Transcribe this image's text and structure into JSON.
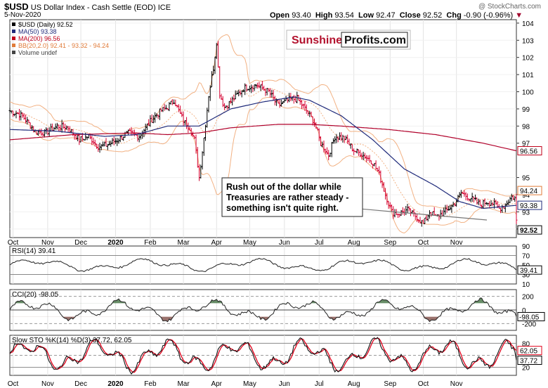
{
  "header": {
    "symbol": "$USD",
    "name": "US Dollar Index - Cash Settle (EOD)",
    "exchange": "ICE",
    "date": "5-Nov-2020",
    "open_label": "Open",
    "open": "93.40",
    "high_label": "High",
    "high": "93.54",
    "low_label": "Low",
    "low": "92.47",
    "close_label": "Close",
    "close": "92.52",
    "chg_label": "Chg",
    "chg": "-0.90 (-0.96%)",
    "watermark": "@ StockCharts.com"
  },
  "legend": [
    {
      "text": "$USD (Daily) 92.52",
      "color": "#000000"
    },
    {
      "text": "MA(50) 93.38",
      "color": "#1f2a7a"
    },
    {
      "text": "MA(200) 96.56",
      "color": "#c0001a"
    },
    {
      "text": "BB(20,2.0) 92.41 - 93.32 - 94.24",
      "color": "#e07b39"
    },
    {
      "text": "Volume undef",
      "color": "#444444"
    }
  ],
  "logo": {
    "part1": "Sunshine",
    "part2": "Profits.com"
  },
  "annotation": {
    "lines": [
      "Rush out of the dollar while",
      "Treasuries are rather steady -",
      "something isn't quite right."
    ]
  },
  "x_labels": [
    "Oct",
    "Nov",
    "Dec",
    "2020",
    "Feb",
    "Mar",
    "Apr",
    "May",
    "Jun",
    "Jul",
    "Aug",
    "Sep",
    "Oct",
    "Nov"
  ],
  "price_badges": [
    {
      "value": "96.56",
      "color": "#c0001a"
    },
    {
      "value": "94.24",
      "color": "#e07b39"
    },
    {
      "value": "93.38",
      "color": "#1f2a7a"
    },
    {
      "value": "92.52",
      "color": "#000000"
    }
  ],
  "chart_data": [
    {
      "type": "line",
      "title": "$USD (Daily) 92.52",
      "ylim": [
        91.5,
        104.2
      ],
      "y_ticks": [
        "104",
        "103",
        "102",
        "101",
        "100",
        "99",
        "98",
        "97",
        "95",
        "94",
        "93",
        "92"
      ],
      "series": [
        {
          "name": "$USD (Daily) 92.52",
          "kind": "ohlc",
          "anchors": [
            [
              0,
              98.9
            ],
            [
              8,
              98.6
            ],
            [
              16,
              97.7
            ],
            [
              22,
              97.6
            ],
            [
              30,
              98.0
            ],
            [
              37,
              97.9
            ],
            [
              44,
              97.2
            ],
            [
              50,
              97.4
            ],
            [
              56,
              96.8
            ],
            [
              62,
              96.9
            ],
            [
              68,
              97.2
            ],
            [
              75,
              97.6
            ],
            [
              82,
              97.4
            ],
            [
              90,
              98.4
            ],
            [
              96,
              98.9
            ],
            [
              100,
              99.1
            ],
            [
              104,
              99.5
            ],
            [
              110,
              98.3
            ],
            [
              114,
              97.9
            ],
            [
              117,
              97.2
            ],
            [
              120,
              95.0
            ],
            [
              123,
              97.3
            ],
            [
              126,
              99.8
            ],
            [
              129,
              101.4
            ],
            [
              131,
              102.9
            ],
            [
              133,
              99.9
            ],
            [
              136,
              99.1
            ],
            [
              142,
              99.6
            ],
            [
              148,
              100.2
            ],
            [
              156,
              100.4
            ],
            [
              164,
              100.0
            ],
            [
              170,
              99.2
            ],
            [
              176,
              99.5
            ],
            [
              182,
              99.6
            ],
            [
              188,
              98.9
            ],
            [
              193,
              98.2
            ],
            [
              197,
              97.0
            ],
            [
              202,
              96.3
            ],
            [
              206,
              97.4
            ],
            [
              212,
              97.3
            ],
            [
              218,
              96.6
            ],
            [
              224,
              96.3
            ],
            [
              230,
              95.9
            ],
            [
              234,
              95.2
            ],
            [
              238,
              94.0
            ],
            [
              242,
              93.0
            ],
            [
              246,
              92.9
            ],
            [
              252,
              93.1
            ],
            [
              258,
              92.7
            ],
            [
              262,
              92.3
            ],
            [
              266,
              93.0
            ],
            [
              270,
              92.7
            ],
            [
              274,
              92.9
            ],
            [
              278,
              93.2
            ],
            [
              282,
              93.5
            ],
            [
              286,
              94.1
            ],
            [
              290,
              93.9
            ],
            [
              294,
              93.7
            ],
            [
              298,
              93.4
            ],
            [
              302,
              93.6
            ],
            [
              306,
              93.5
            ],
            [
              310,
              93.2
            ],
            [
              314,
              93.4
            ],
            [
              318,
              93.9
            ],
            [
              320,
              93.8
            ],
            [
              321,
              92.5
            ]
          ]
        },
        {
          "name": "MA(50) 93.38",
          "anchors": [
            [
              0,
              97.8
            ],
            [
              30,
              97.7
            ],
            [
              60,
              97.4
            ],
            [
              80,
              97.5
            ],
            [
              100,
              98.0
            ],
            [
              120,
              98.0
            ],
            [
              140,
              99.0
            ],
            [
              160,
              99.4
            ],
            [
              180,
              99.7
            ],
            [
              190,
              99.5
            ],
            [
              210,
              98.6
            ],
            [
              230,
              97.2
            ],
            [
              250,
              95.5
            ],
            [
              270,
              94.5
            ],
            [
              285,
              93.6
            ],
            [
              300,
              93.2
            ],
            [
              321,
              93.38
            ]
          ]
        },
        {
          "name": "MA(200) 96.56",
          "anchors": [
            [
              0,
              97.2
            ],
            [
              40,
              97.5
            ],
            [
              80,
              97.6
            ],
            [
              100,
              97.5
            ],
            [
              120,
              97.6
            ],
            [
              140,
              97.9
            ],
            [
              170,
              98.1
            ],
            [
              190,
              98.1
            ],
            [
              210,
              98.0
            ],
            [
              240,
              97.8
            ],
            [
              270,
              97.5
            ],
            [
              300,
              97.0
            ],
            [
              321,
              96.56
            ]
          ]
        },
        {
          "name": "BB(20,2.0) 92.41 - 93.32 - 94.24",
          "kind": "bollinger"
        }
      ]
    },
    {
      "type": "line",
      "title": "RSI(14) 39.41",
      "ylim": [
        10,
        90
      ],
      "y_ticks": [
        "90",
        "70",
        "50",
        "30",
        "10"
      ],
      "last": "39.41"
    },
    {
      "type": "line",
      "title": "CCI(20) -98.05",
      "ylim": [
        -300,
        300
      ],
      "y_ticks": [
        "200",
        "0",
        "-200"
      ],
      "last": "-98.05"
    },
    {
      "type": "line",
      "title": "Slow STO %K(14) %D(3) 37.72, 62.05",
      "ylim": [
        0,
        100
      ],
      "y_ticks": [
        "80",
        "20"
      ],
      "last_k": "37.72",
      "last_d": "62.05"
    }
  ]
}
